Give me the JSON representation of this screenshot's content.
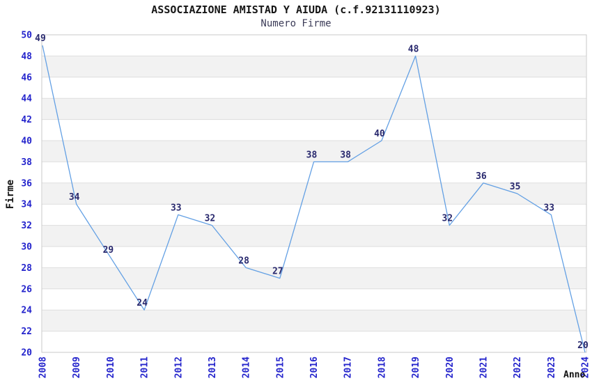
{
  "chart_data": {
    "type": "line",
    "title": "ASSOCIAZIONE AMISTAD Y AIUDA (c.f.92131110923)",
    "subtitle": "Numero Firme",
    "xlabel": "Anno",
    "ylabel": "Firme",
    "categories": [
      "2008",
      "2009",
      "2010",
      "2011",
      "2012",
      "2013",
      "2014",
      "2015",
      "2016",
      "2017",
      "2018",
      "2019",
      "2020",
      "2021",
      "2022",
      "2023",
      "2024"
    ],
    "values": [
      49,
      34,
      29,
      24,
      33,
      32,
      28,
      27,
      38,
      38,
      40,
      48,
      32,
      36,
      35,
      33,
      20
    ],
    "ylim": [
      20,
      50
    ],
    "ytick_step": 2,
    "grid": "horizontal-stripes",
    "legend_position": "none",
    "value_labels_shown": true,
    "colors": {
      "line": "#63a0e4",
      "tick_label": "#2424cc",
      "value_label": "#29296e",
      "title": "#161616",
      "subtitle": "#3c3c58",
      "stripe_band": "#f2f2f2",
      "gridline": "#dedede",
      "plot_border": "#c9c9c9",
      "background": "#ffffff"
    }
  }
}
